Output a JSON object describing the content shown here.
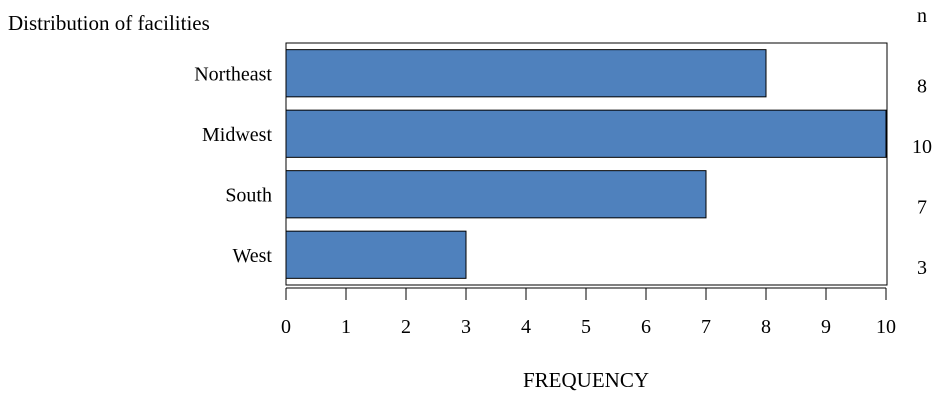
{
  "chart_data": {
    "type": "bar",
    "orientation": "horizontal",
    "title": "Distribution of facilities",
    "categories": [
      "Northeast",
      "Midwest",
      "South",
      "West"
    ],
    "values": [
      8,
      10,
      7,
      3
    ],
    "xlabel": "FREQUENCY",
    "ylabel": "",
    "xlim": [
      0,
      10
    ],
    "xticks": [
      0,
      1,
      2,
      3,
      4,
      5,
      6,
      7,
      8,
      9,
      10
    ],
    "n_header": "n",
    "n_values": [
      "8",
      "10",
      "7",
      "3"
    ],
    "grid": false,
    "bar_color": "#4f81bd",
    "bar_edge_color": "#000000"
  }
}
